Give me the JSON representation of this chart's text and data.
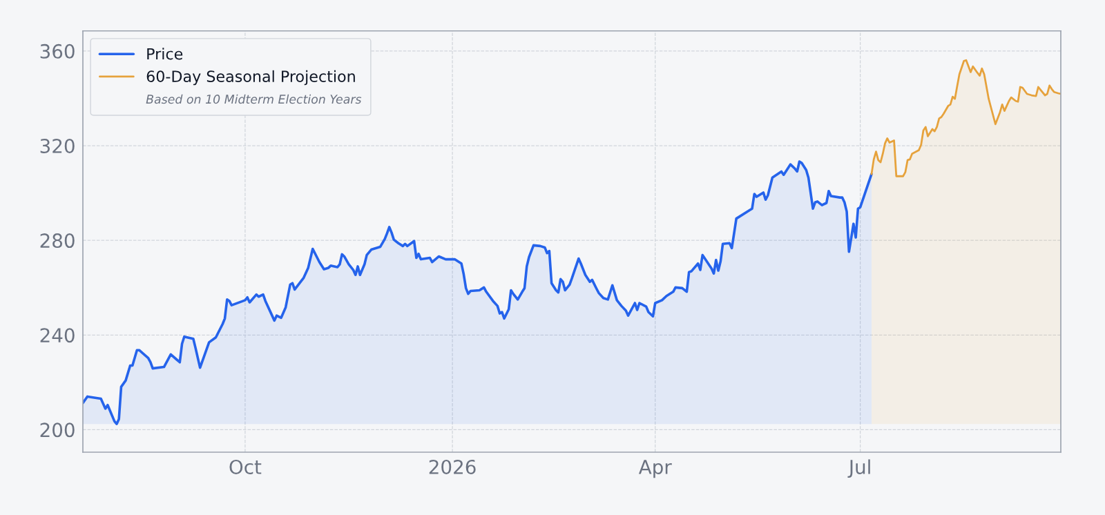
{
  "chart_data": {
    "type": "area",
    "subtitle": "Based on 10 Midterm Election Years",
    "xlim": [
      "2025-07-21",
      "2026-09-28"
    ],
    "ylim": [
      190.5,
      368.5
    ],
    "xticks": [
      {
        "value": "2025-10-01",
        "label": "Oct"
      },
      {
        "value": "2026-01-01",
        "label": "2026"
      },
      {
        "value": "2026-04-01",
        "label": "Apr"
      },
      {
        "value": "2026-07-01",
        "label": "Jul"
      }
    ],
    "yticks": [
      200,
      240,
      280,
      320,
      360
    ],
    "grid": true,
    "legend": "top left",
    "series": [
      {
        "name": "Price",
        "color": "#2563eb",
        "x": [
          "2025-07-21",
          "2025-07-23",
          "2025-07-29",
          "2025-07-31",
          "2025-08-01",
          "2025-08-04",
          "2025-08-05",
          "2025-08-06",
          "2025-08-07",
          "2025-08-09",
          "2025-08-11",
          "2025-08-12",
          "2025-08-14",
          "2025-08-15",
          "2025-08-19",
          "2025-08-20",
          "2025-08-21",
          "2025-08-26",
          "2025-08-29",
          "2025-09-02",
          "2025-09-03",
          "2025-09-04",
          "2025-09-08",
          "2025-09-09",
          "2025-09-11",
          "2025-09-15",
          "2025-09-18",
          "2025-09-21",
          "2025-09-22",
          "2025-09-23",
          "2025-09-24",
          "2025-09-25",
          "2025-10-01",
          "2025-10-02",
          "2025-10-03",
          "2025-10-06",
          "2025-10-07",
          "2025-10-09",
          "2025-10-10",
          "2025-10-14",
          "2025-10-15",
          "2025-10-17",
          "2025-10-19",
          "2025-10-21",
          "2025-10-22",
          "2025-10-23",
          "2025-10-27",
          "2025-10-29",
          "2025-10-31",
          "2025-11-03",
          "2025-11-05",
          "2025-11-07",
          "2025-11-08",
          "2025-11-11",
          "2025-11-12",
          "2025-11-13",
          "2025-11-14",
          "2025-11-16",
          "2025-11-18",
          "2025-11-19",
          "2025-11-20",
          "2025-11-21",
          "2025-11-23",
          "2025-11-24",
          "2025-11-26",
          "2025-11-30",
          "2025-12-02",
          "2025-12-03",
          "2025-12-04",
          "2025-12-05",
          "2025-12-06",
          "2025-12-08",
          "2025-12-10",
          "2025-12-11",
          "2025-12-12",
          "2025-12-15",
          "2025-12-16",
          "2025-12-17",
          "2025-12-18",
          "2025-12-22",
          "2025-12-23",
          "2025-12-26",
          "2025-12-29",
          "2026-01-02",
          "2026-01-05",
          "2026-01-06",
          "2026-01-07",
          "2026-01-08",
          "2026-01-09",
          "2026-01-13",
          "2026-01-15",
          "2026-01-16",
          "2026-01-19",
          "2026-01-21",
          "2026-01-22",
          "2026-01-23",
          "2026-01-24",
          "2026-01-26",
          "2026-01-27",
          "2026-01-28",
          "2026-01-30",
          "2026-02-01",
          "2026-02-02",
          "2026-02-03",
          "2026-02-04",
          "2026-02-06",
          "2026-02-09",
          "2026-02-11",
          "2026-02-12",
          "2026-02-13",
          "2026-02-14",
          "2026-02-16",
          "2026-02-17",
          "2026-02-18",
          "2026-02-19",
          "2026-02-20",
          "2026-02-22",
          "2026-02-23",
          "2026-02-26",
          "2026-02-27",
          "2026-03-01",
          "2026-03-03",
          "2026-03-04",
          "2026-03-06",
          "2026-03-07",
          "2026-03-09",
          "2026-03-11",
          "2026-03-13",
          "2026-03-15",
          "2026-03-17",
          "2026-03-19",
          "2026-03-20",
          "2026-03-23",
          "2026-03-24",
          "2026-03-25",
          "2026-03-28",
          "2026-03-29",
          "2026-03-31",
          "2026-04-01",
          "2026-04-04",
          "2026-04-06",
          "2026-04-09",
          "2026-04-10",
          "2026-04-13",
          "2026-04-15",
          "2026-04-16",
          "2026-04-17",
          "2026-04-20",
          "2026-04-21",
          "2026-04-22",
          "2026-04-26",
          "2026-04-27",
          "2026-04-28",
          "2026-04-29",
          "2026-04-30",
          "2026-05-01",
          "2026-05-04",
          "2026-05-05",
          "2026-05-07",
          "2026-05-13",
          "2026-05-14",
          "2026-05-15",
          "2026-05-16",
          "2026-05-18",
          "2026-05-19",
          "2026-05-20",
          "2026-05-21",
          "2026-05-23",
          "2026-05-27",
          "2026-05-28",
          "2026-05-30",
          "2026-05-31",
          "2026-06-02",
          "2026-06-03",
          "2026-06-04",
          "2026-06-05",
          "2026-06-07",
          "2026-06-08",
          "2026-06-10",
          "2026-06-11",
          "2026-06-12",
          "2026-06-14",
          "2026-06-16",
          "2026-06-17",
          "2026-06-18",
          "2026-06-22",
          "2026-06-23",
          "2026-06-24",
          "2026-06-25",
          "2026-06-26",
          "2026-06-28",
          "2026-06-29",
          "2026-06-30",
          "2026-07-01",
          "2026-07-06"
        ],
        "values": [
          211.3,
          214.0,
          213.1,
          208.9,
          210.4,
          203.6,
          202.4,
          204.5,
          218.1,
          220.8,
          227.1,
          227.1,
          233.6,
          233.6,
          230.3,
          228.5,
          225.9,
          226.5,
          231.8,
          228.5,
          236.3,
          239.3,
          238.4,
          234.5,
          226.2,
          236.9,
          239.0,
          244.6,
          247.0,
          255.0,
          254.4,
          252.6,
          254.7,
          255.9,
          253.8,
          257.1,
          256.2,
          257.1,
          254.4,
          246.1,
          248.2,
          247.3,
          251.7,
          261.3,
          261.9,
          259.2,
          264.2,
          268.4,
          276.4,
          270.8,
          267.8,
          268.4,
          269.3,
          268.7,
          269.9,
          274.1,
          273.2,
          269.9,
          267.5,
          265.4,
          269.0,
          265.4,
          269.9,
          273.8,
          276.1,
          277.3,
          280.6,
          283.0,
          285.6,
          283.3,
          280.3,
          278.8,
          277.6,
          278.5,
          277.6,
          279.7,
          272.6,
          274.3,
          272.0,
          272.6,
          270.8,
          273.2,
          272.0,
          272.0,
          270.2,
          265.7,
          259.8,
          257.4,
          258.6,
          258.9,
          260.1,
          258.3,
          254.4,
          252.3,
          249.1,
          249.7,
          247.0,
          250.9,
          258.9,
          257.4,
          255.0,
          258.3,
          259.8,
          269.0,
          272.9,
          277.9,
          277.6,
          277.0,
          274.6,
          275.5,
          261.9,
          258.9,
          258.0,
          263.6,
          262.5,
          258.9,
          261.3,
          263.9,
          272.3,
          270.2,
          265.4,
          262.5,
          263.3,
          259.5,
          257.7,
          255.6,
          255.0,
          261.0,
          254.7,
          252.3,
          250.3,
          248.2,
          253.5,
          250.6,
          253.5,
          252.0,
          249.7,
          247.9,
          253.5,
          254.7,
          256.5,
          258.3,
          260.1,
          259.8,
          258.3,
          266.6,
          266.9,
          270.2,
          267.5,
          273.8,
          268.1,
          266.0,
          271.7,
          267.2,
          271.1,
          278.5,
          278.8,
          276.7,
          289.2,
          292.8,
          293.4,
          299.6,
          298.4,
          299.6,
          300.2,
          297.2,
          299.0,
          306.5,
          309.1,
          307.7,
          310.6,
          312.1,
          310.3,
          309.1,
          313.3,
          312.7,
          309.7,
          306.5,
          293.4,
          296.1,
          296.4,
          294.9,
          295.8,
          300.8,
          298.7,
          298.1,
          298.1,
          296.1,
          292.2,
          275.2,
          287.0,
          281.2,
          293.4,
          294.0,
          308.0
        ]
      },
      {
        "name": "60-Day Seasonal Projection",
        "color": "#e6a23c",
        "x": [
          "2026-07-06",
          "2026-07-07",
          "2026-07-08",
          "2026-07-09",
          "2026-07-10",
          "2026-07-11",
          "2026-07-12",
          "2026-07-13",
          "2026-07-14",
          "2026-07-16",
          "2026-07-17",
          "2026-07-20",
          "2026-07-21",
          "2026-07-22",
          "2026-07-23",
          "2026-07-24",
          "2026-07-27",
          "2026-07-28",
          "2026-07-29",
          "2026-07-30",
          "2026-07-31",
          "2026-08-01",
          "2026-08-02",
          "2026-08-03",
          "2026-08-04",
          "2026-08-05",
          "2026-08-06",
          "2026-08-07",
          "2026-08-09",
          "2026-08-10",
          "2026-08-11",
          "2026-08-12",
          "2026-08-13",
          "2026-08-14",
          "2026-08-16",
          "2026-08-17",
          "2026-08-19",
          "2026-08-20",
          "2026-08-22",
          "2026-08-23",
          "2026-08-24",
          "2026-08-25",
          "2026-08-27",
          "2026-08-28",
          "2026-08-30",
          "2026-09-01",
          "2026-09-02",
          "2026-09-03",
          "2026-09-04",
          "2026-09-05",
          "2026-09-06",
          "2026-09-08",
          "2026-09-09",
          "2026-09-10",
          "2026-09-11",
          "2026-09-13",
          "2026-09-15",
          "2026-09-17",
          "2026-09-18",
          "2026-09-19",
          "2026-09-21",
          "2026-09-22",
          "2026-09-23",
          "2026-09-24",
          "2026-09-25",
          "2026-09-27",
          "2026-09-28"
        ],
        "values": [
          308.0,
          314.2,
          317.5,
          313.9,
          313.0,
          316.6,
          321.0,
          323.1,
          321.3,
          322.2,
          307.1,
          307.1,
          308.8,
          313.9,
          314.2,
          316.6,
          318.1,
          320.4,
          326.4,
          327.9,
          324.0,
          325.5,
          327.0,
          326.1,
          327.9,
          331.5,
          332.1,
          333.5,
          336.8,
          337.4,
          340.7,
          339.8,
          345.1,
          350.2,
          355.8,
          356.1,
          351.1,
          353.5,
          350.8,
          349.6,
          352.6,
          350.2,
          339.8,
          336.2,
          329.1,
          334.1,
          337.4,
          334.7,
          336.8,
          338.9,
          340.4,
          338.9,
          338.6,
          344.8,
          344.5,
          341.9,
          341.3,
          341.0,
          344.8,
          343.6,
          341.3,
          341.9,
          345.4,
          343.9,
          342.7,
          342.1,
          341.9
        ]
      }
    ]
  }
}
